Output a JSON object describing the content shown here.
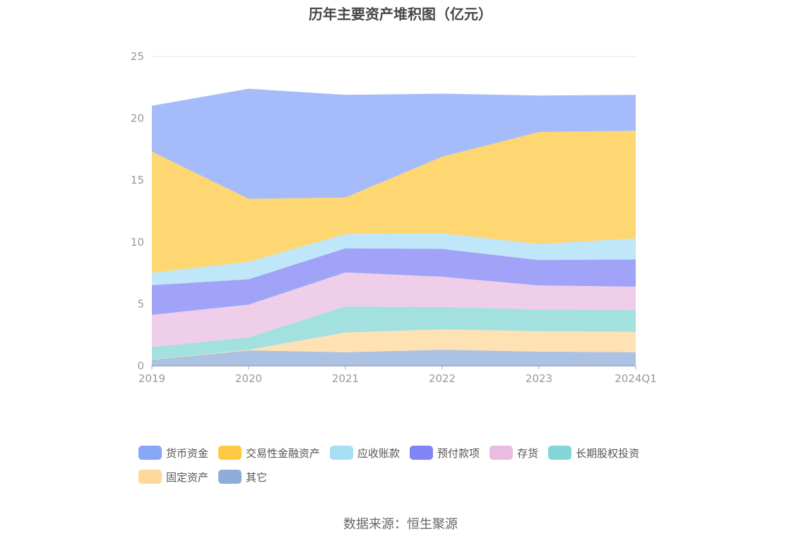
{
  "title": "历年主要资产堆积图（亿元）",
  "source": "数据来源：恒生聚源",
  "chart_data": {
    "type": "area",
    "stacked": true,
    "categories": [
      "2019",
      "2020",
      "2021",
      "2022",
      "2023",
      "2024Q1"
    ],
    "ylim": [
      0,
      25
    ],
    "yticks": [
      0,
      5,
      10,
      15,
      20,
      25
    ],
    "grid": true,
    "legend_position": "bottom",
    "series": [
      {
        "name": "其它",
        "color": "#8fadd9",
        "values": [
          0.5,
          1.25,
          1.1,
          1.3,
          1.15,
          1.1
        ]
      },
      {
        "name": "固定资产",
        "color": "#fdd89a",
        "values": [
          0.02,
          0.05,
          1.6,
          1.65,
          1.65,
          1.65
        ]
      },
      {
        "name": "长期股权投资",
        "color": "#84d6d6",
        "values": [
          1.0,
          1.0,
          2.1,
          1.8,
          1.75,
          1.75
        ]
      },
      {
        "name": "存货",
        "color": "#e8bde0",
        "values": [
          2.6,
          2.65,
          2.75,
          2.45,
          1.95,
          1.9
        ]
      },
      {
        "name": "预付款项",
        "color": "#8084f4",
        "values": [
          2.4,
          2.05,
          1.95,
          2.25,
          2.05,
          2.2
        ]
      },
      {
        "name": "应收账款",
        "color": "#a9def7",
        "values": [
          1.0,
          1.4,
          1.15,
          1.25,
          1.3,
          1.7
        ]
      },
      {
        "name": "交易性金融资产",
        "color": "#fdc943",
        "values": [
          9.8,
          5.1,
          2.95,
          6.2,
          9.05,
          8.7
        ]
      },
      {
        "name": "货币资金",
        "color": "#88a6f8",
        "values": [
          3.7,
          8.9,
          8.3,
          5.1,
          2.95,
          2.9
        ]
      }
    ],
    "legend_order": [
      "货币资金",
      "交易性金融资产",
      "应收账款",
      "预付款项",
      "存货",
      "长期股权投资",
      "固定资产",
      "其它"
    ]
  }
}
